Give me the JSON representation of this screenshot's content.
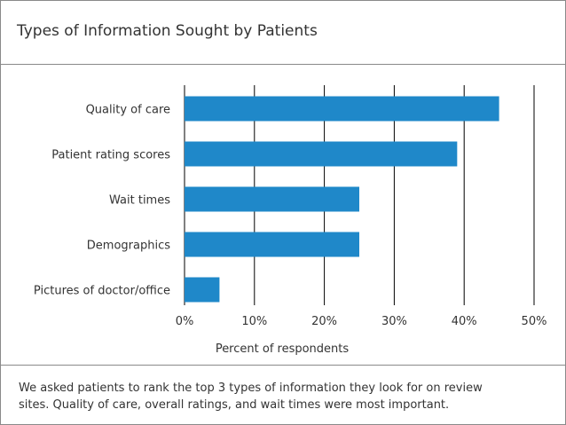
{
  "title": "Types of Information Sought by Patients",
  "caption": {
    "line1": "We asked patients to rank the top 3 types of information they look for on review",
    "line2": "sites. Quality of care, overall ratings, and wait times were most important."
  },
  "colors": {
    "bar": "#1f88c9",
    "grid": "#000000",
    "text": "#333333",
    "border": "#8a8a8a"
  },
  "chart_data": {
    "type": "bar",
    "orientation": "horizontal",
    "categories": [
      "Quality of care",
      "Patient rating scores",
      "Wait times",
      "Demographics",
      "Pictures of doctor/office"
    ],
    "values": [
      45,
      39,
      25,
      25,
      5
    ],
    "xlabel": "Percent of respondents",
    "ylabel": "",
    "xlim": [
      0,
      50
    ],
    "xticks": [
      "0%",
      "10%",
      "20%",
      "30%",
      "40%",
      "50%"
    ],
    "grid": "vertical",
    "legend": "none"
  }
}
